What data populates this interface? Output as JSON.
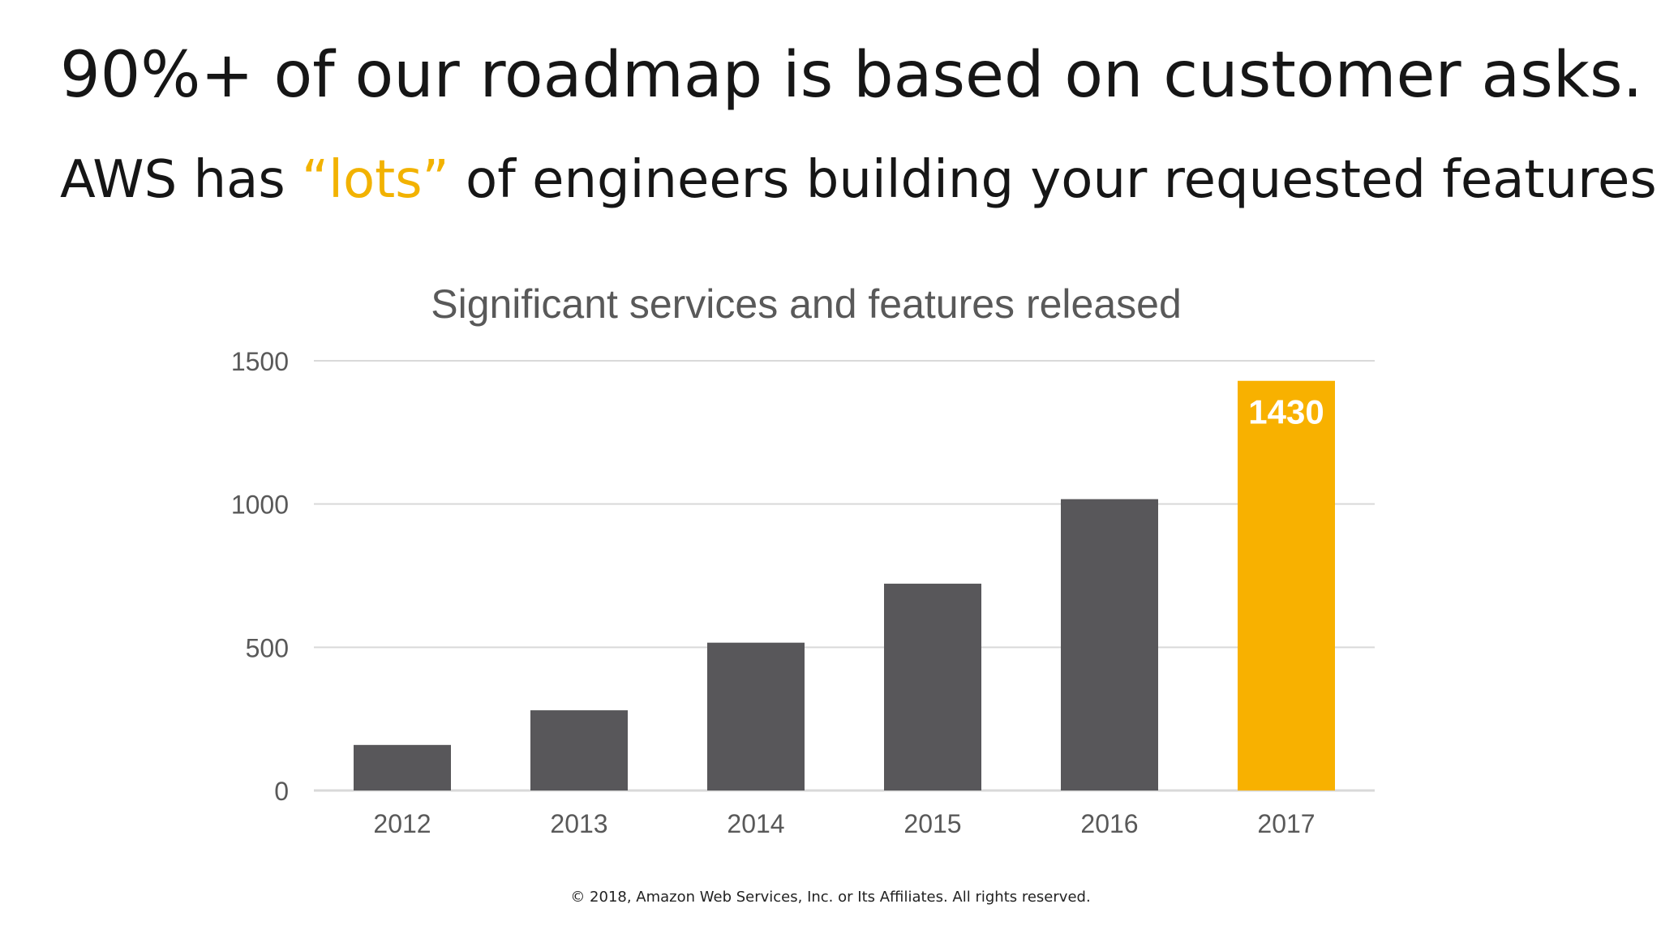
{
  "slide": {
    "headline": "90%+ of our roadmap is based on customer asks.",
    "subhead_before": "AWS has ",
    "subhead_accent": "“lots”",
    "subhead_after": " of engineers building your requested features",
    "footer": "© 2018, Amazon Web Services, Inc. or Its Affiliates. All rights reserved."
  },
  "colors": {
    "bar": "#58575a",
    "highlight": "#f8b100",
    "accent_text": "#f2b200",
    "gridline": "#d9d9d9",
    "axis_text": "#595959"
  },
  "chart_data": {
    "type": "bar",
    "title": "Significant services and features released",
    "xlabel": "",
    "ylabel": "",
    "categories": [
      "2012",
      "2013",
      "2014",
      "2015",
      "2016",
      "2017"
    ],
    "values": [
      159,
      280,
      516,
      722,
      1017,
      1430
    ],
    "highlight_index": 5,
    "data_labels": [
      {
        "index": 5,
        "text": "1430"
      }
    ],
    "ylim": [
      0,
      1500
    ],
    "yticks": [
      0,
      500,
      1000,
      1500
    ],
    "grid": true,
    "legend": "none"
  }
}
